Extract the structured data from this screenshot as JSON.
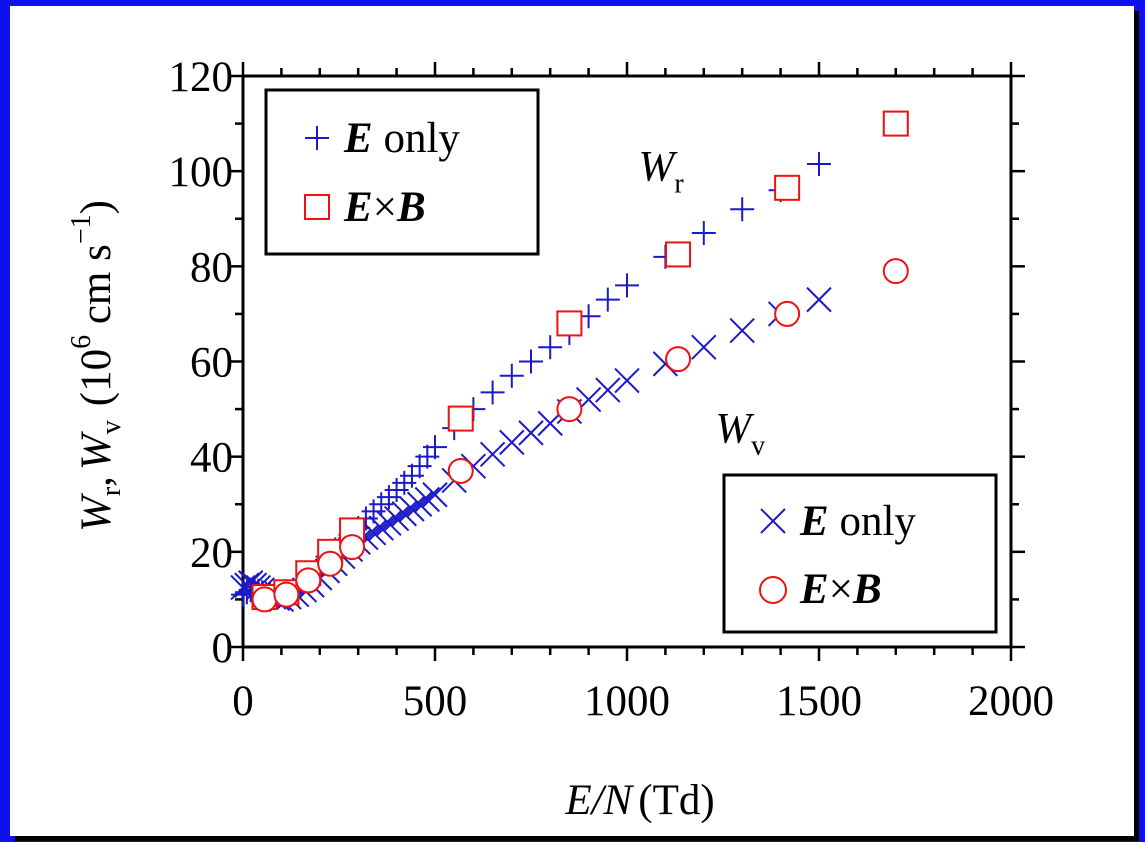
{
  "chart_data": {
    "type": "scatter",
    "xlabel_italic": "E/N",
    "xlabel_unit": "(Td)",
    "ylabel": {
      "w1": "W",
      "sub1": "r",
      "comma": ",",
      "w2": "W",
      "sub2": "v",
      "unit_pre": "(10",
      "exp": "6",
      "unit_mid": " cm s",
      "exp2": "−1",
      "unit_post": ")"
    },
    "xlim": [
      0,
      2000
    ],
    "ylim": [
      0,
      120
    ],
    "x_ticks": [
      "0",
      "500",
      "1000",
      "1500",
      "2000"
    ],
    "x_tick_values": [
      0,
      500,
      1000,
      1500,
      2000
    ],
    "y_ticks": [
      "0",
      "20",
      "40",
      "60",
      "80",
      "100",
      "120"
    ],
    "y_tick_values": [
      0,
      20,
      40,
      60,
      80,
      100,
      120
    ],
    "annotations": [
      {
        "main": "W",
        "sub": "r",
        "x": 1030,
        "y": 98
      },
      {
        "main": "W",
        "sub": "v",
        "x": 1230,
        "y": 43
      }
    ],
    "legends": [
      {
        "position": "top-left",
        "entries": [
          {
            "marker": "plus",
            "color": "#1a1ac8",
            "label_bold": "E",
            "label_rest": " only"
          },
          {
            "marker": "square",
            "color": "#ee1111",
            "label_bold": "E",
            "label_times": "×",
            "label_bold2": "B"
          }
        ]
      },
      {
        "position": "bottom-right",
        "entries": [
          {
            "marker": "cross",
            "color": "#1a1ac8",
            "label_bold": "E",
            "label_rest": " only"
          },
          {
            "marker": "circle",
            "color": "#ee1111",
            "label_bold": "E",
            "label_times": "×",
            "label_bold2": "B"
          }
        ]
      }
    ],
    "series": [
      {
        "name": "W_r E only",
        "marker": "plus",
        "color": "#1a1ac8",
        "x": [
          0,
          10,
          20,
          30,
          40,
          50,
          60,
          70,
          80,
          90,
          100,
          120,
          140,
          160,
          180,
          200,
          220,
          240,
          260,
          280,
          300,
          320,
          340,
          360,
          380,
          400,
          420,
          440,
          460,
          480,
          500,
          550,
          600,
          650,
          700,
          750,
          800,
          850,
          900,
          950,
          1000,
          1100,
          1200,
          1300,
          1400,
          1500
        ],
        "y": [
          11,
          11.5,
          12,
          12,
          11.8,
          11.5,
          11.2,
          11,
          10.8,
          10.8,
          11,
          11.5,
          12.5,
          14,
          15.5,
          17,
          19,
          20.5,
          22,
          23.5,
          25,
          27,
          28.5,
          30,
          31.5,
          33,
          34.5,
          36,
          38,
          40,
          42,
          46,
          50,
          53.5,
          57,
          60,
          63,
          66,
          69.5,
          73,
          76,
          82,
          87,
          92,
          96,
          101.5
        ]
      },
      {
        "name": "W_v E only",
        "marker": "cross",
        "color": "#1a1ac8",
        "x": [
          0,
          10,
          20,
          30,
          40,
          50,
          60,
          70,
          80,
          90,
          100,
          120,
          140,
          160,
          180,
          200,
          220,
          240,
          260,
          280,
          300,
          320,
          340,
          360,
          380,
          400,
          420,
          440,
          460,
          480,
          500,
          550,
          600,
          650,
          700,
          750,
          800,
          850,
          900,
          950,
          1000,
          1100,
          1200,
          1300,
          1400,
          1500
        ],
        "y": [
          12.5,
          13,
          13.5,
          13,
          12.5,
          12,
          11.5,
          11,
          10.5,
          10.2,
          10,
          10.5,
          11,
          12,
          13,
          14.5,
          16,
          17.5,
          19,
          20.5,
          22,
          23,
          24,
          25,
          26,
          27,
          28,
          29,
          30,
          31,
          32,
          35,
          38,
          40.5,
          43,
          45,
          47,
          49.5,
          52,
          54,
          56,
          59.5,
          63,
          66.5,
          70,
          73
        ]
      },
      {
        "name": "W_r E×B",
        "marker": "square",
        "color": "#ee1111",
        "x": [
          56,
          113,
          170,
          227,
          284,
          567,
          850,
          1133,
          1417,
          1700
        ],
        "y": [
          10.5,
          11.5,
          15.5,
          20,
          24.5,
          48,
          68,
          82.5,
          96.5,
          110
        ]
      },
      {
        "name": "W_v E×B",
        "marker": "circle",
        "color": "#ee1111",
        "x": [
          56,
          113,
          170,
          227,
          284,
          567,
          850,
          1133,
          1417,
          1700
        ],
        "y": [
          10,
          11,
          14,
          17.5,
          21,
          37,
          50,
          60.5,
          70,
          79
        ]
      }
    ]
  }
}
